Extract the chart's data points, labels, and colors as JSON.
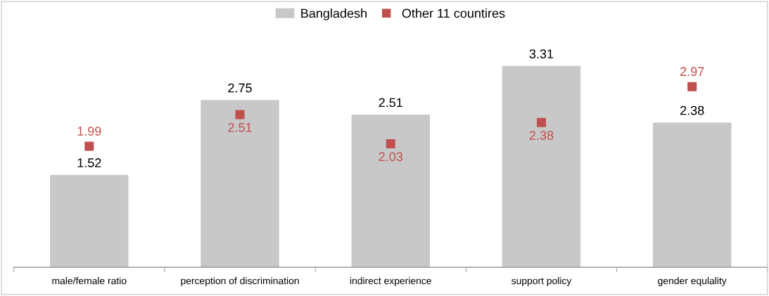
{
  "chart_data": {
    "type": "bar",
    "categories": [
      "male/female ratio",
      "perception of discrimination",
      "indirect experience",
      "support policy",
      "gender equlality"
    ],
    "series": [
      {
        "name": "Bangladesh",
        "color": "#c8c8c8",
        "values": [
          1.52,
          2.75,
          2.51,
          3.31,
          2.38
        ]
      },
      {
        "name": "Other 11 countires",
        "type": "scatter",
        "color": "#c0504d",
        "values": [
          1.99,
          2.51,
          2.03,
          2.38,
          2.97
        ]
      }
    ],
    "data_labels": true,
    "marker": "square",
    "legend": "top",
    "grid": false
  }
}
